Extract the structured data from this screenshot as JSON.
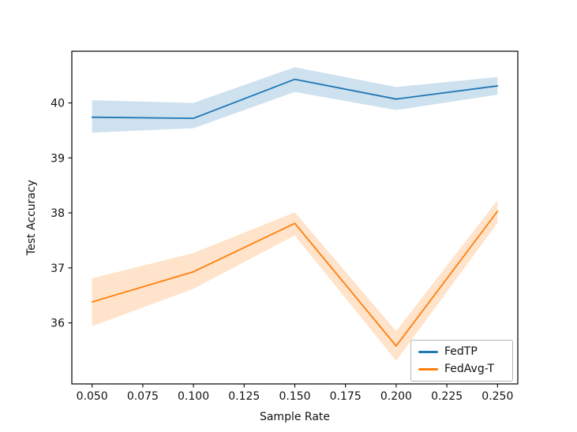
{
  "figure": {
    "background": "#ffffff"
  },
  "chart_data": {
    "type": "line",
    "title": "",
    "xlabel": "Sample Rate",
    "ylabel": "Test Accuracy",
    "grid": false,
    "legend_position": "lower right",
    "x": [
      0.05,
      0.1,
      0.15,
      0.2,
      0.25
    ],
    "x_ticks": [
      0.05,
      0.075,
      0.1,
      0.125,
      0.15,
      0.175,
      0.2,
      0.225,
      0.25
    ],
    "x_tick_labels": [
      "0.050",
      "0.075",
      "0.100",
      "0.125",
      "0.150",
      "0.175",
      "0.200",
      "0.225",
      "0.250"
    ],
    "y_ticks": [
      36,
      37,
      38,
      39,
      40
    ],
    "y_tick_labels": [
      "36",
      "37",
      "38",
      "39",
      "40"
    ],
    "xlim": [
      0.04,
      0.26
    ],
    "ylim": [
      34.89,
      40.94
    ],
    "series": [
      {
        "name": "FedTP",
        "color": "#1f77b4",
        "values": [
          39.74,
          39.72,
          40.43,
          40.07,
          40.31
        ],
        "band_lower": [
          39.46,
          39.54,
          40.2,
          39.87,
          40.15
        ],
        "band_upper": [
          40.05,
          40.0,
          40.65,
          40.29,
          40.47
        ]
      },
      {
        "name": "FedAvg-T",
        "color": "#ff7f0e",
        "values": [
          36.38,
          36.93,
          37.81,
          35.58,
          38.03
        ],
        "band_lower": [
          35.94,
          36.62,
          37.59,
          35.31,
          37.82
        ],
        "band_upper": [
          36.81,
          37.27,
          38.01,
          35.85,
          38.23
        ]
      }
    ]
  }
}
